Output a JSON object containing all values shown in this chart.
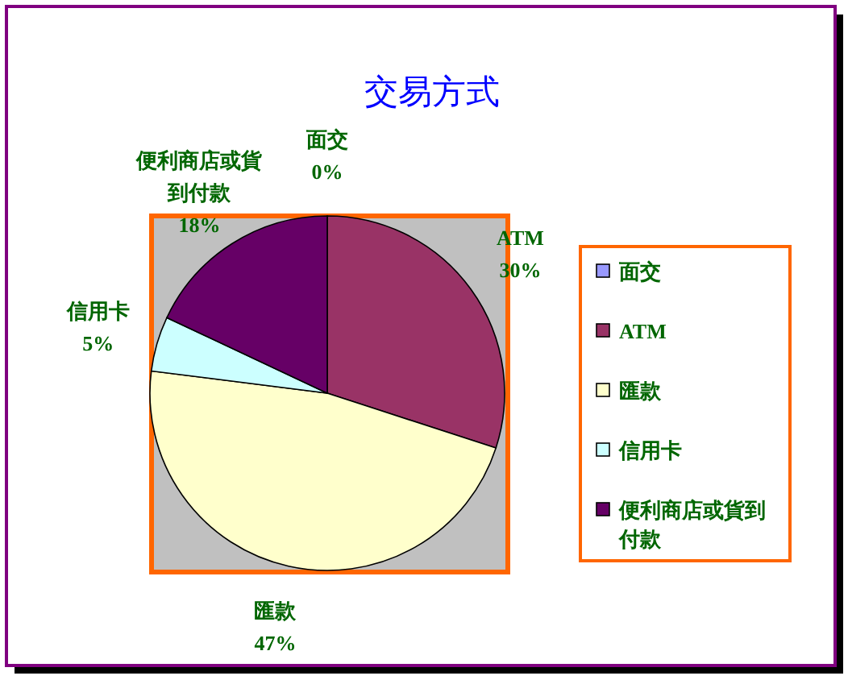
{
  "chart_data": {
    "type": "pie",
    "title": "交易方式",
    "categories": [
      "面交",
      "ATM",
      "匯款",
      "信用卡",
      "便利商店或貨到付款"
    ],
    "values": [
      0,
      30,
      47,
      5,
      18
    ],
    "colors": [
      "#9999ff",
      "#993366",
      "#ffffcc",
      "#ccffff",
      "#660066"
    ],
    "value_labels": [
      "0%",
      "30%",
      "47%",
      "5%",
      "18%"
    ],
    "legend": "right"
  }
}
